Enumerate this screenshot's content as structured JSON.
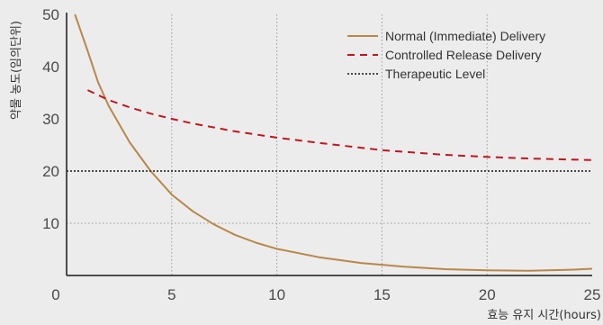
{
  "chart_data": {
    "type": "line",
    "title": "",
    "xlabel": "효능 유지 시간(hours)",
    "ylabel": "약물 농도(임의단위)",
    "xlim": [
      0,
      25
    ],
    "ylim": [
      0,
      50
    ],
    "x_ticks": [
      0,
      5,
      10,
      15,
      20,
      25
    ],
    "y_ticks": [
      10,
      20,
      30,
      40,
      50
    ],
    "grid": "vertical dotted at x ticks, horizontal dotted at y=10",
    "legend_position": "top-right",
    "series": [
      {
        "name": "Normal (Immediate) Delivery",
        "style": "solid",
        "color": "#b8874a",
        "x": [
          0.4,
          1,
          1.5,
          2,
          3,
          4,
          5,
          6,
          7,
          8,
          9,
          10,
          12,
          14,
          16,
          18,
          20,
          22,
          24,
          25
        ],
        "y": [
          50,
          43,
          37,
          32.5,
          25.5,
          20,
          15.5,
          12.3,
          9.8,
          7.8,
          6.3,
          5.1,
          3.5,
          2.4,
          1.7,
          1.2,
          1,
          0.9,
          1.1,
          1.3
        ]
      },
      {
        "name": "Controlled Release Delivery",
        "style": "dashed",
        "color": "#c0161d",
        "x": [
          1,
          2,
          3,
          4,
          5,
          6,
          8,
          10,
          12,
          15,
          18,
          20,
          22,
          24,
          25
        ],
        "y": [
          35.5,
          33.6,
          32.2,
          31,
          30,
          29.1,
          27.6,
          26.4,
          25.4,
          24,
          23.1,
          22.7,
          22.4,
          22.2,
          22.1
        ]
      },
      {
        "name": "Therapeutic Level",
        "style": "dotted",
        "color": "#333333",
        "x": [
          0,
          25
        ],
        "y": [
          20,
          20
        ]
      }
    ]
  }
}
